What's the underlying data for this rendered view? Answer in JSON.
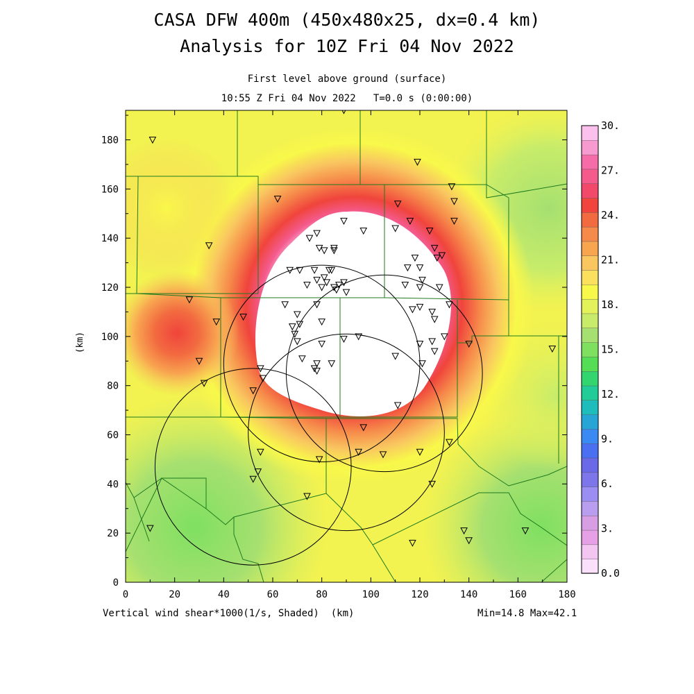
{
  "title": {
    "line1": "CASA DFW 400m (450x480x25, dx=0.4 km)",
    "line2": "Analysis for 10Z Fri 04 Nov 2022"
  },
  "subtitle": {
    "level": "First level above ground (surface)",
    "time": "10:55 Z Fri 04 Nov 2022   T=0.0 s (0:00:00)"
  },
  "axes": {
    "x_label": "(km)",
    "y_label": "(km)",
    "x_ticks": [
      "0",
      "20",
      "40",
      "60",
      "80",
      "100",
      "120",
      "140",
      "160",
      "180"
    ],
    "y_ticks": [
      "0",
      "20",
      "40",
      "60",
      "80",
      "100",
      "120",
      "140",
      "160",
      "180"
    ],
    "x_range": [
      0,
      180
    ],
    "y_range": [
      0,
      192
    ]
  },
  "footer": {
    "field": "Vertical wind shear*1000(1/s, Shaded)  (km)",
    "minmax": "Min=14.8 Max=42.1"
  },
  "colorbar": {
    "labels": [
      "30.",
      "27.",
      "24.",
      "21.",
      "18.",
      "15.",
      "12.",
      "9.",
      "6.",
      "3.",
      "0.0"
    ],
    "colors_bottom_to_top": [
      "#fbe0fb",
      "#f3c6f1",
      "#e6a0e6",
      "#d79ee4",
      "#b99ef0",
      "#9b8ef2",
      "#7c76ea",
      "#6a6ae8",
      "#4a6ff0",
      "#3b89f2",
      "#27a6d6",
      "#1fbcbc",
      "#22cc99",
      "#33d66e",
      "#55dd55",
      "#7fe060",
      "#a6e070",
      "#c8ec6a",
      "#e3f25a",
      "#f8f84a",
      "#fbe060",
      "#f9c660",
      "#f8a550",
      "#f68a4a",
      "#f26a40",
      "#f0443c",
      "#f2486a",
      "#f45a8c",
      "#f56ca8",
      "#f79ad0",
      "#fbc0ec"
    ],
    "min": 0,
    "max": 30
  },
  "radars": [
    {
      "x": 105.5,
      "y": 85.0,
      "r": 40
    },
    {
      "x": 80.0,
      "y": 89.0,
      "r": 40
    },
    {
      "x": 90.0,
      "y": 61.0,
      "r": 40
    },
    {
      "x": 52.0,
      "y": 47.0,
      "r": 40
    }
  ],
  "stations": [
    [
      11,
      180
    ],
    [
      89,
      192
    ],
    [
      119,
      171
    ],
    [
      133,
      161
    ],
    [
      134,
      155
    ],
    [
      134,
      147
    ],
    [
      62,
      156
    ],
    [
      34,
      137
    ],
    [
      111,
      154
    ],
    [
      116,
      147
    ],
    [
      110,
      144
    ],
    [
      124,
      143
    ],
    [
      97,
      143
    ],
    [
      89,
      147
    ],
    [
      75,
      140
    ],
    [
      78,
      142
    ],
    [
      79,
      136
    ],
    [
      81,
      135
    ],
    [
      85,
      135
    ],
    [
      85,
      136
    ],
    [
      126,
      136
    ],
    [
      127,
      132
    ],
    [
      129,
      133
    ],
    [
      118,
      132
    ],
    [
      115,
      128
    ],
    [
      120,
      128
    ],
    [
      67,
      127
    ],
    [
      71,
      127
    ],
    [
      77,
      127
    ],
    [
      78,
      123
    ],
    [
      81,
      124
    ],
    [
      83,
      127
    ],
    [
      84,
      127
    ],
    [
      87,
      121
    ],
    [
      89,
      122
    ],
    [
      82,
      122
    ],
    [
      80,
      120
    ],
    [
      74,
      121
    ],
    [
      85,
      120
    ],
    [
      86,
      119
    ],
    [
      90,
      118
    ],
    [
      114,
      121
    ],
    [
      121,
      123
    ],
    [
      120,
      120
    ],
    [
      128,
      120
    ],
    [
      65,
      113
    ],
    [
      70,
      109
    ],
    [
      78,
      113
    ],
    [
      120,
      112
    ],
    [
      117,
      111
    ],
    [
      125,
      110
    ],
    [
      126,
      107
    ],
    [
      132,
      113
    ],
    [
      26,
      115
    ],
    [
      37,
      106
    ],
    [
      48,
      108
    ],
    [
      68,
      104
    ],
    [
      71,
      105
    ],
    [
      69,
      101
    ],
    [
      70,
      98
    ],
    [
      80,
      106
    ],
    [
      80,
      97
    ],
    [
      89,
      99
    ],
    [
      95,
      100
    ],
    [
      110,
      92
    ],
    [
      120,
      97
    ],
    [
      125,
      98
    ],
    [
      126,
      94
    ],
    [
      130,
      100
    ],
    [
      140,
      97
    ],
    [
      174,
      95
    ],
    [
      30,
      90
    ],
    [
      32,
      81
    ],
    [
      55,
      87
    ],
    [
      56,
      83
    ],
    [
      52,
      78
    ],
    [
      78,
      89
    ],
    [
      77,
      87
    ],
    [
      78,
      86
    ],
    [
      72,
      91
    ],
    [
      84,
      89
    ],
    [
      121,
      89
    ],
    [
      111,
      72
    ],
    [
      97,
      63
    ],
    [
      132,
      57
    ],
    [
      55,
      53
    ],
    [
      79,
      50
    ],
    [
      95,
      53
    ],
    [
      105,
      52
    ],
    [
      120,
      53
    ],
    [
      52,
      42
    ],
    [
      54,
      45
    ],
    [
      74,
      35
    ],
    [
      125,
      40
    ],
    [
      10,
      22
    ],
    [
      138,
      21
    ],
    [
      140,
      17
    ],
    [
      117,
      16
    ],
    [
      163,
      21
    ]
  ]
}
